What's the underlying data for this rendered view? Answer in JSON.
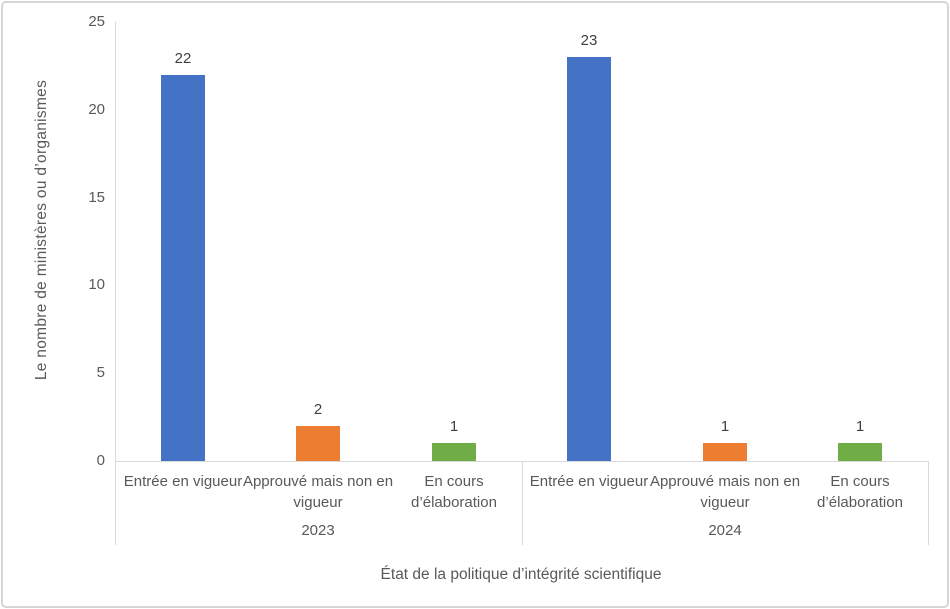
{
  "chart_data": {
    "type": "bar",
    "title": "",
    "ylabel": "Le nombre de ministères ou d’organismes",
    "xlabel": "État de la politique d’intégrité scientifique",
    "ylim": [
      0,
      25
    ],
    "yticks": [
      0,
      5,
      10,
      15,
      20,
      25
    ],
    "grid": false,
    "legend": "none",
    "data_labels": true,
    "categories": [
      "Entrée en vigueur",
      "Approuvé mais non en vigueur",
      "En cours d’élaboration"
    ],
    "groups": [
      {
        "label": "2023",
        "values": [
          22,
          2,
          1
        ]
      },
      {
        "label": "2024",
        "values": [
          23,
          1,
          1
        ]
      }
    ],
    "bar_colors": [
      "#4472C4",
      "#ED7D31",
      "#70AD47"
    ]
  },
  "colors": {
    "axis_line": "#D9D9D9",
    "axis_text": "#595959",
    "data_label_text": "#404040",
    "frame_border": "#D6D4D4",
    "background": "#FFFFFF"
  }
}
